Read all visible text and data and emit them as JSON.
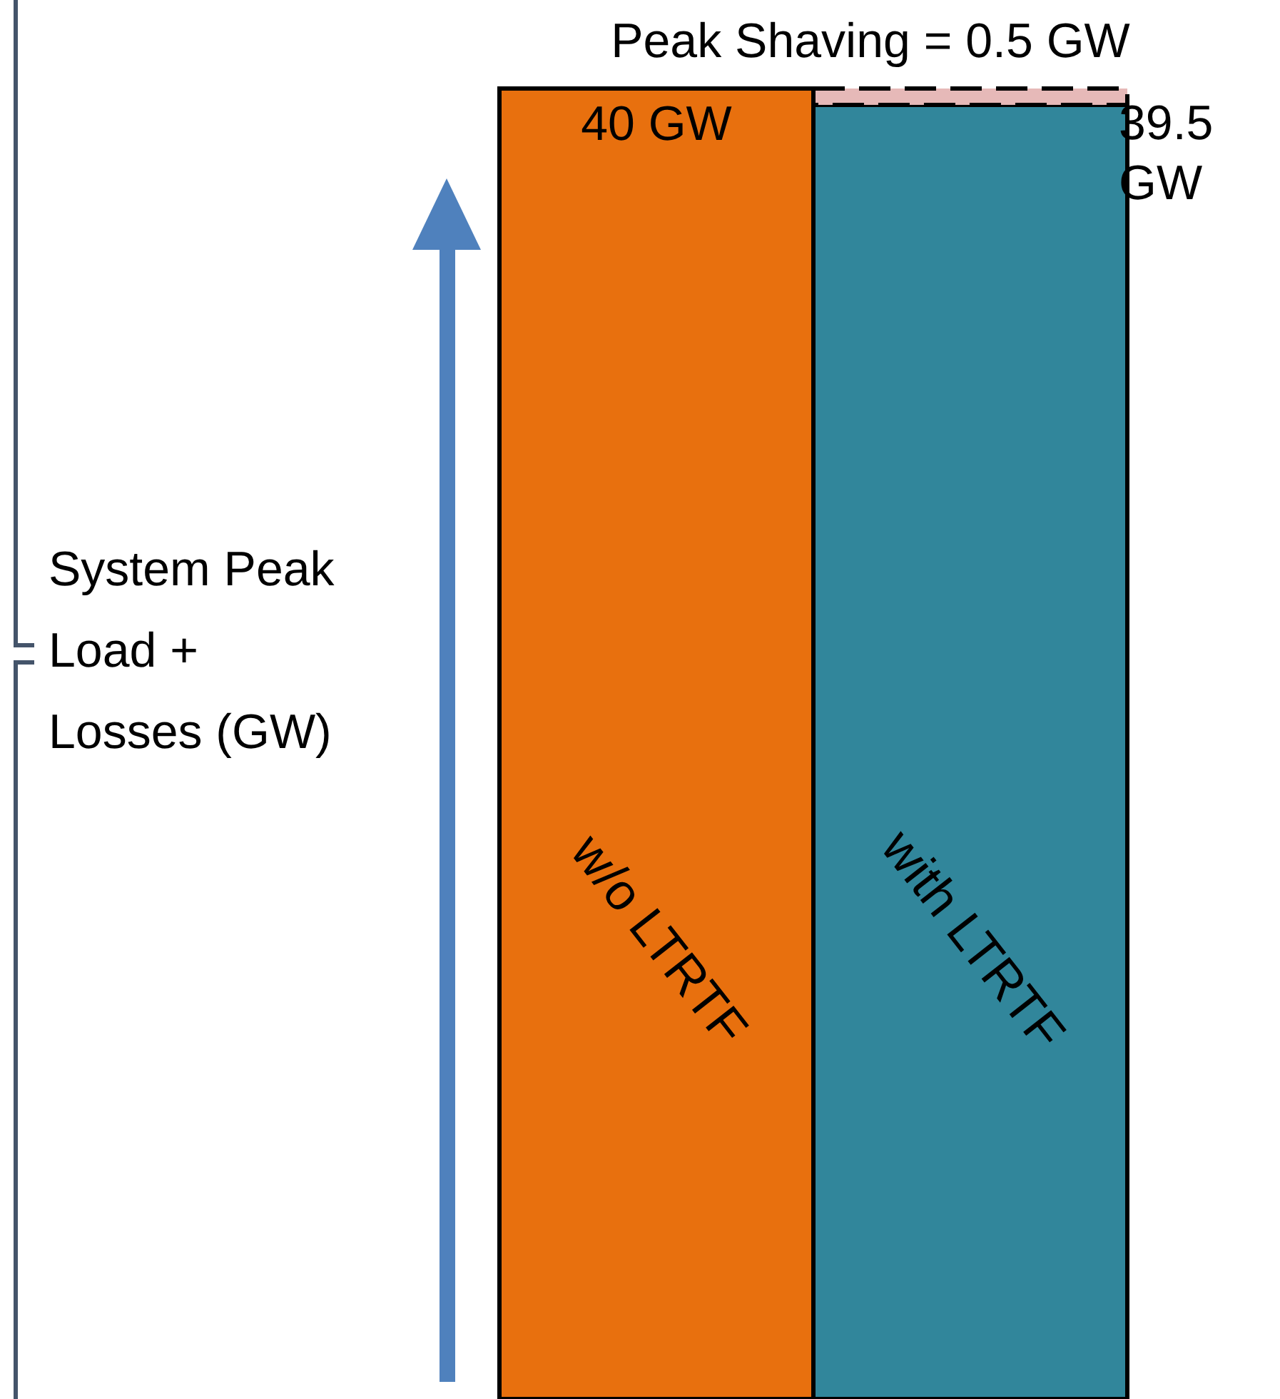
{
  "chart_data": {
    "type": "bar",
    "stacked": true,
    "categories": [
      "w/o LTRTF",
      "with LTRTF"
    ],
    "ylabel": "System Peak Load + Losses (GW)",
    "series": [
      {
        "colors": [
          "#e8700e",
          "#31869b"
        ],
        "values": [
          40,
          39.5
        ],
        "value_labels": [
          "40 GW",
          "39.5 GW"
        ]
      },
      {
        "color": "#e6b9b8",
        "values": [
          null,
          0.5
        ],
        "value_labels": [
          null,
          "Peak Shaving = 0.5 GW"
        ]
      }
    ]
  }
}
